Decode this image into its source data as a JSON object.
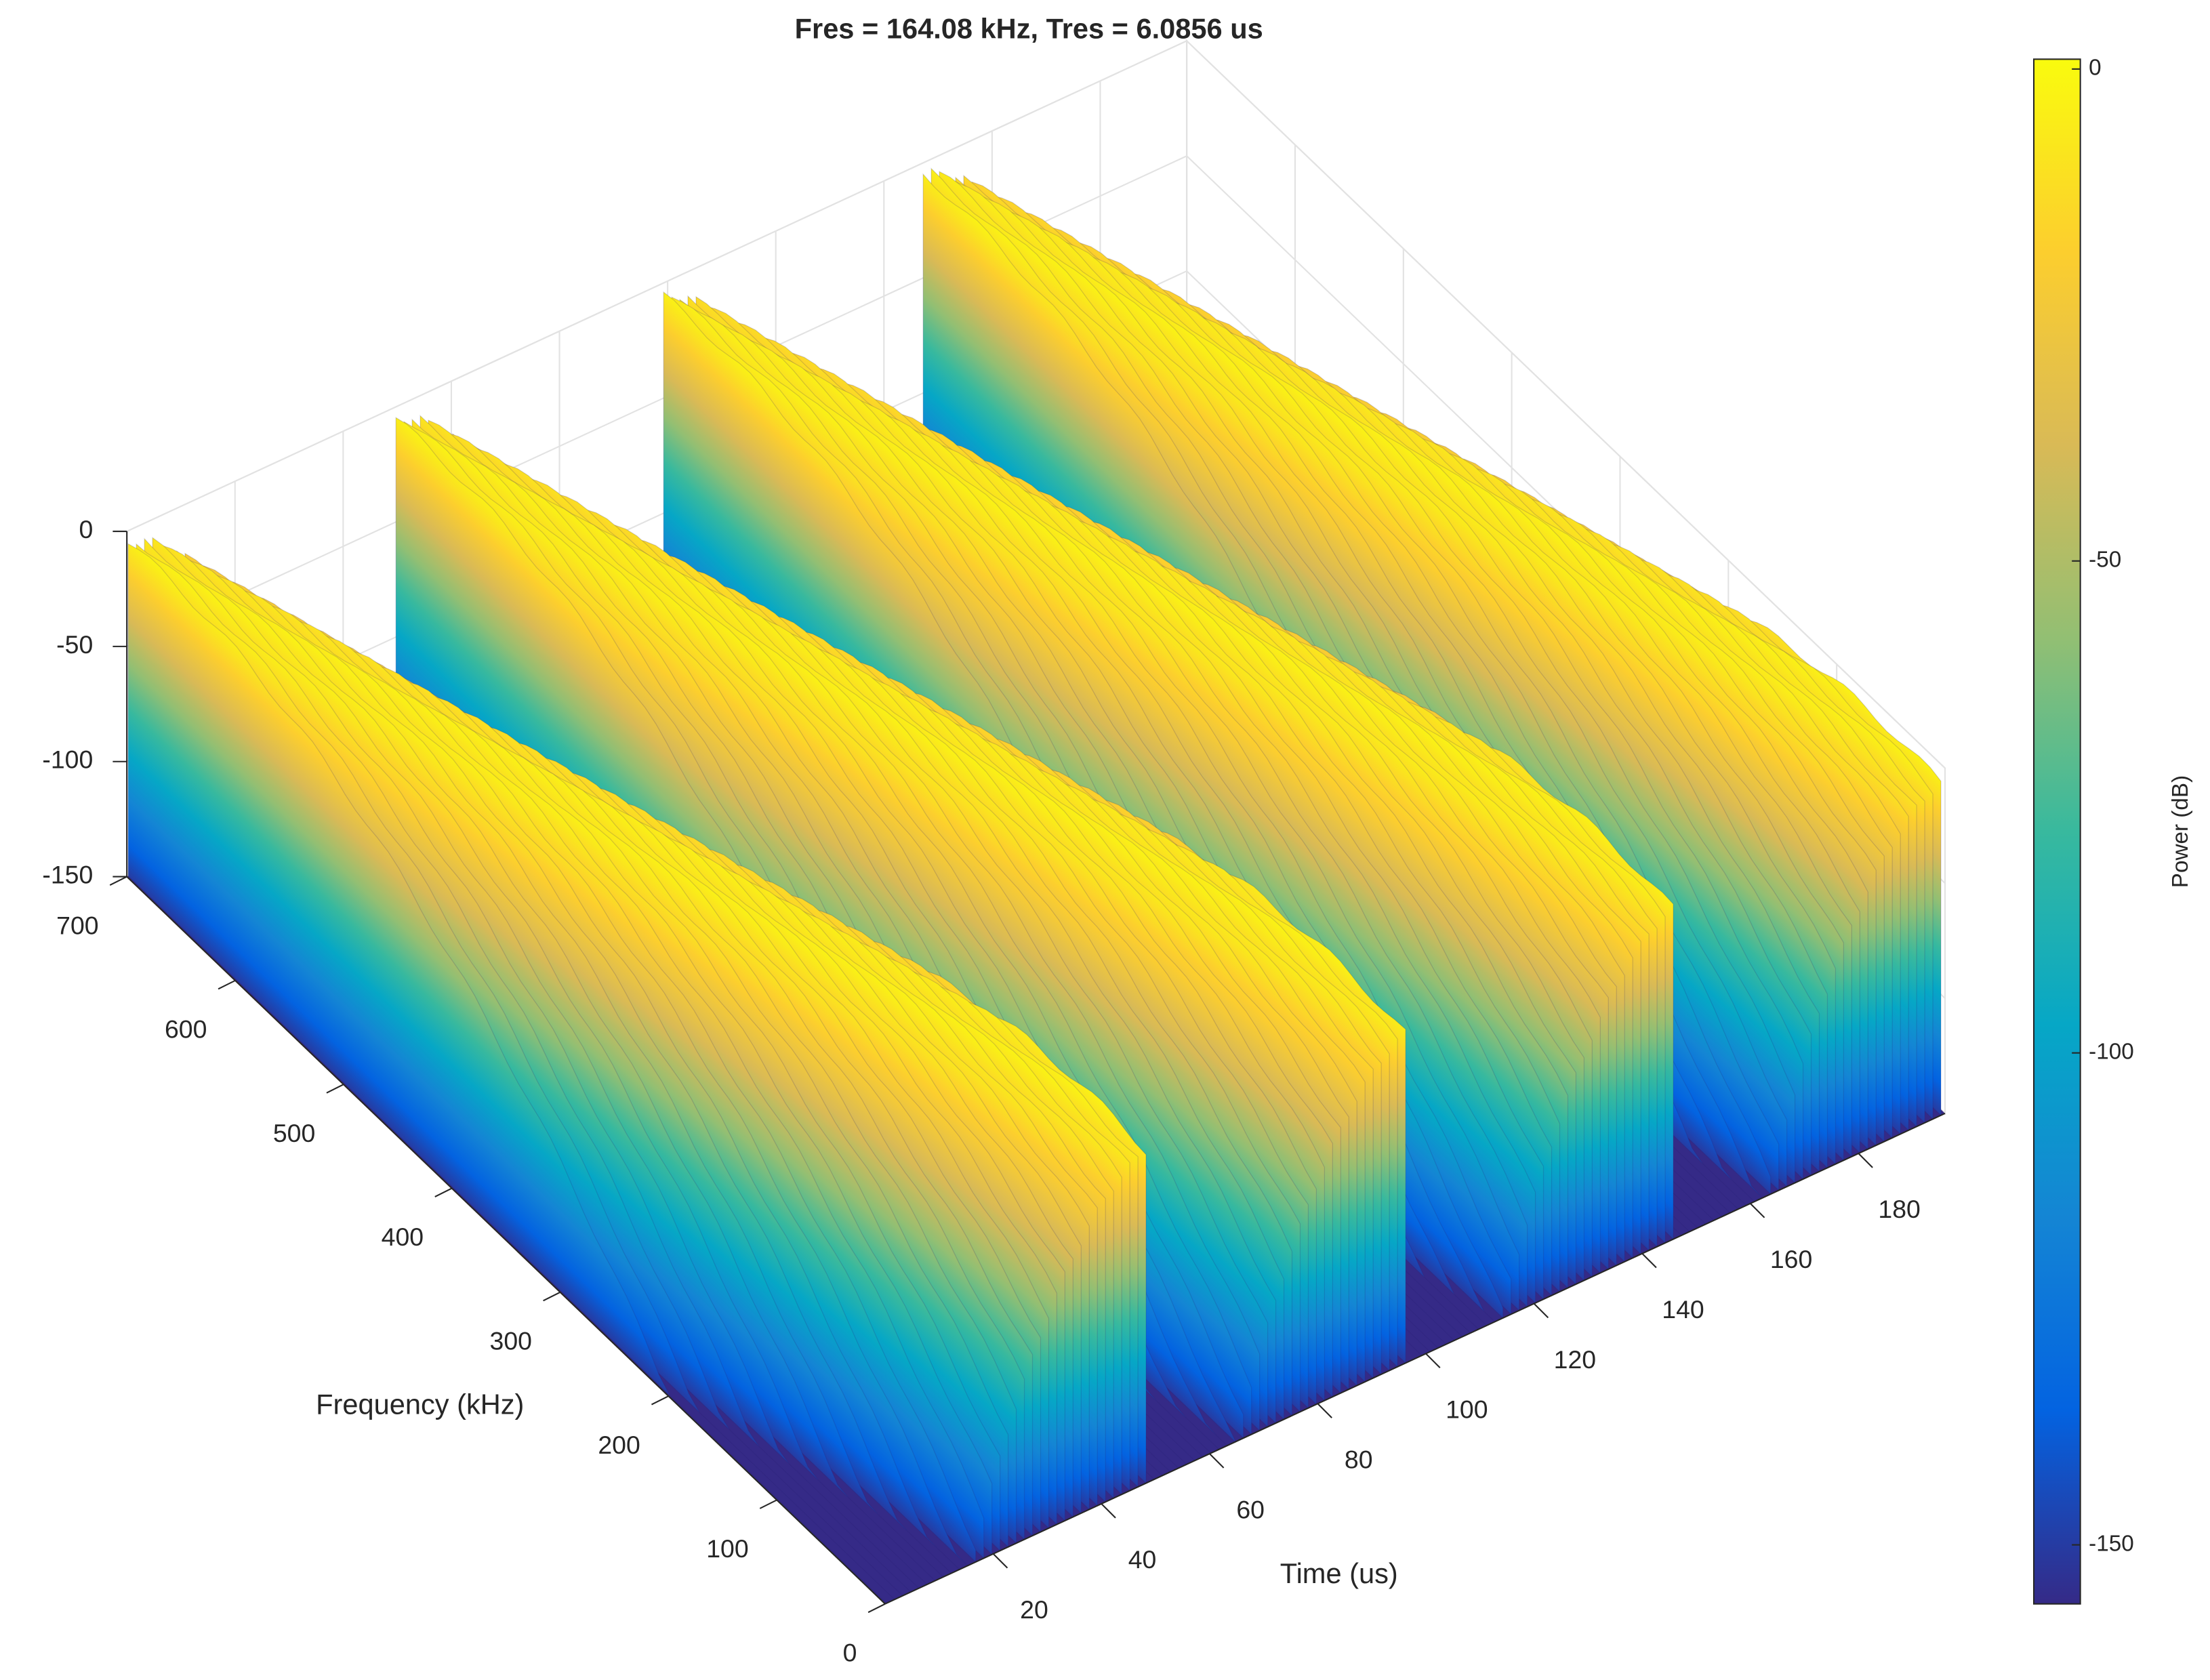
{
  "chart_data": {
    "type": "surface",
    "title": "Fres = 164.08 kHz, Tres = 6.0856 us",
    "xlabel": "Time (us)",
    "ylabel": "Frequency (kHz)",
    "xlim": [
      0,
      196
    ],
    "xticks": [
      20,
      40,
      60,
      80,
      100,
      120,
      140,
      160,
      180
    ],
    "ylim": [
      0,
      700
    ],
    "yticks": [
      0,
      100,
      200,
      300,
      400,
      500,
      600,
      700
    ],
    "zlim": [
      -150,
      0
    ],
    "zticks": [
      -150,
      -100,
      -50,
      0
    ],
    "grid": true,
    "colormap": [
      "#352a87",
      "#0363e1",
      "#1485d4",
      "#06a7c6",
      "#38b99e",
      "#92bf73",
      "#d9ba56",
      "#fcce2e",
      "#f9fb0e"
    ],
    "colorbar": {
      "label": "Power (dB)",
      "clim": [
        -156,
        1
      ],
      "ticks": [
        -150,
        -100,
        -50,
        0
      ]
    }
  }
}
